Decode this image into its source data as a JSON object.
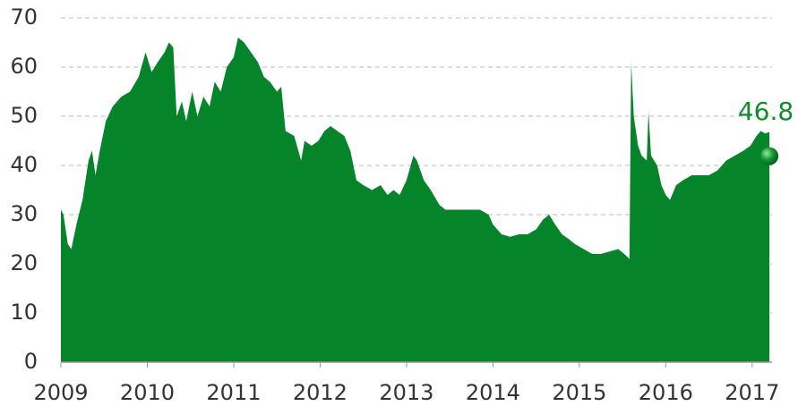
{
  "chart_data": {
    "type": "area",
    "x": [
      2009.0,
      2009.03,
      2009.08,
      2009.12,
      2009.18,
      2009.25,
      2009.32,
      2009.36,
      2009.4,
      2009.45,
      2009.52,
      2009.6,
      2009.7,
      2009.8,
      2009.9,
      2009.98,
      2010.05,
      2010.12,
      2010.2,
      2010.25,
      2010.3,
      2010.34,
      2010.4,
      2010.45,
      2010.52,
      2010.58,
      2010.65,
      2010.72,
      2010.78,
      2010.85,
      2010.92,
      2011.0,
      2011.05,
      2011.12,
      2011.2,
      2011.28,
      2011.35,
      2011.42,
      2011.5,
      2011.55,
      2011.6,
      2011.7,
      2011.78,
      2011.82,
      2011.9,
      2011.98,
      2012.05,
      2012.12,
      2012.2,
      2012.28,
      2012.35,
      2012.42,
      2012.5,
      2012.6,
      2012.7,
      2012.78,
      2012.85,
      2012.92,
      2013.0,
      2013.08,
      2013.12,
      2013.2,
      2013.28,
      2013.38,
      2013.45,
      2013.55,
      2013.65,
      2013.75,
      2013.85,
      2013.95,
      2014.0,
      2014.1,
      2014.2,
      2014.3,
      2014.4,
      2014.5,
      2014.58,
      2014.65,
      2014.72,
      2014.8,
      2014.88,
      2014.95,
      2015.05,
      2015.15,
      2015.25,
      2015.35,
      2015.45,
      2015.52,
      2015.58,
      2015.6,
      2015.63,
      2015.68,
      2015.72,
      2015.78,
      2015.8,
      2015.83,
      2015.9,
      2015.95,
      2016.0,
      2016.05,
      2016.12,
      2016.2,
      2016.3,
      2016.4,
      2016.5,
      2016.6,
      2016.7,
      2016.8,
      2016.9,
      2016.98,
      2017.05,
      2017.1,
      2017.15,
      2017.2
    ],
    "values": [
      31,
      30,
      24,
      23,
      28,
      33,
      41,
      43,
      38,
      43,
      49,
      52,
      54,
      55,
      58,
      63,
      59,
      61,
      63,
      65,
      64,
      50,
      53,
      49,
      55,
      50,
      54,
      52,
      57,
      55,
      60,
      62,
      66,
      65,
      63,
      61,
      58,
      57,
      55,
      56,
      47,
      46,
      41,
      45,
      44,
      45,
      47,
      48,
      47,
      46,
      43,
      37,
      36,
      35,
      36,
      34,
      35,
      34,
      37,
      42,
      41,
      37,
      35,
      32,
      31,
      31,
      31,
      31,
      31,
      30,
      28,
      26,
      25.5,
      26,
      26,
      27,
      29,
      30,
      28,
      26,
      25,
      24,
      23,
      22,
      22,
      22.5,
      23,
      22,
      21,
      61,
      50,
      44,
      42,
      41,
      51,
      42,
      40,
      36,
      34,
      33,
      36,
      37,
      38,
      38,
      38,
      39,
      41,
      42,
      43,
      44,
      46,
      47,
      46.5,
      46.8
    ],
    "color": "#05842a",
    "xlim": [
      2009,
      2017.23
    ],
    "xticks": [
      2009,
      2010,
      2011,
      2012,
      2013,
      2014,
      2015,
      2016,
      2017
    ],
    "ylim": [
      0,
      70
    ],
    "yticks": [
      0,
      10,
      20,
      30,
      40,
      50,
      60,
      70
    ],
    "grid": true,
    "annotation": {
      "x": 2017.2,
      "y": 46.8,
      "label": "46.8"
    }
  }
}
